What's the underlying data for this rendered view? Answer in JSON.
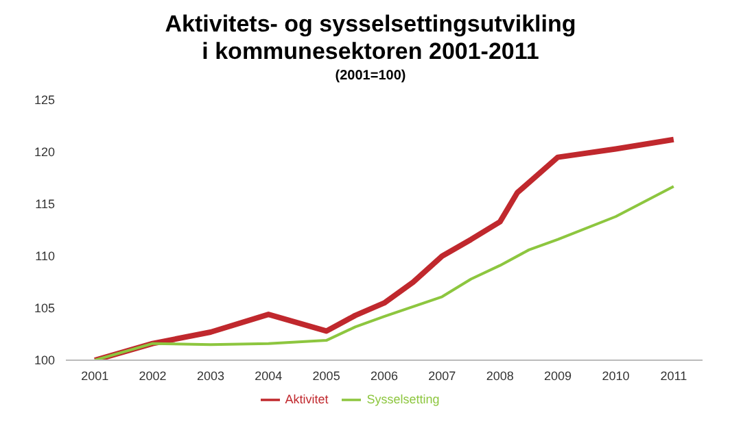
{
  "chart_data": {
    "type": "line",
    "title": "Aktivitets- og sysselsettingsutvikling i kommunesektoren 2001-2011",
    "subtitle": "(2001=100)",
    "xlim": [
      2000.5,
      2011.5
    ],
    "xticks": [
      2001,
      2002,
      2003,
      2004,
      2005,
      2006,
      2007,
      2008,
      2009,
      2010,
      2011
    ],
    "ylim": [
      100,
      125
    ],
    "yticks": [
      100,
      105,
      110,
      115,
      120,
      125
    ],
    "grid": false,
    "legend": "bottom",
    "marker": "none",
    "line_style": "solid",
    "series": [
      {
        "name": "Aktivitet",
        "color": "#c0282d",
        "x": [
          2001,
          2002,
          2003,
          2004,
          2005,
          2005.5,
          2006,
          2006.5,
          2007,
          2007.5,
          2008,
          2008.3,
          2009,
          2010,
          2011
        ],
        "values": [
          100,
          101.6,
          102.7,
          104.4,
          102.8,
          104.3,
          105.5,
          107.5,
          110,
          111.6,
          113.3,
          116.1,
          119.5,
          120.3,
          121.2
        ]
      },
      {
        "name": "Sysselsetting",
        "color": "#8dc63f",
        "x": [
          2001,
          2002,
          2003,
          2004,
          2005,
          2005.5,
          2006,
          2007,
          2007.5,
          2008,
          2008.5,
          2009,
          2010,
          2011
        ],
        "values": [
          100,
          101.6,
          101.5,
          101.6,
          101.9,
          103.2,
          104.2,
          106.1,
          107.8,
          109.1,
          110.6,
          111.6,
          113.8,
          116.7
        ]
      }
    ]
  }
}
